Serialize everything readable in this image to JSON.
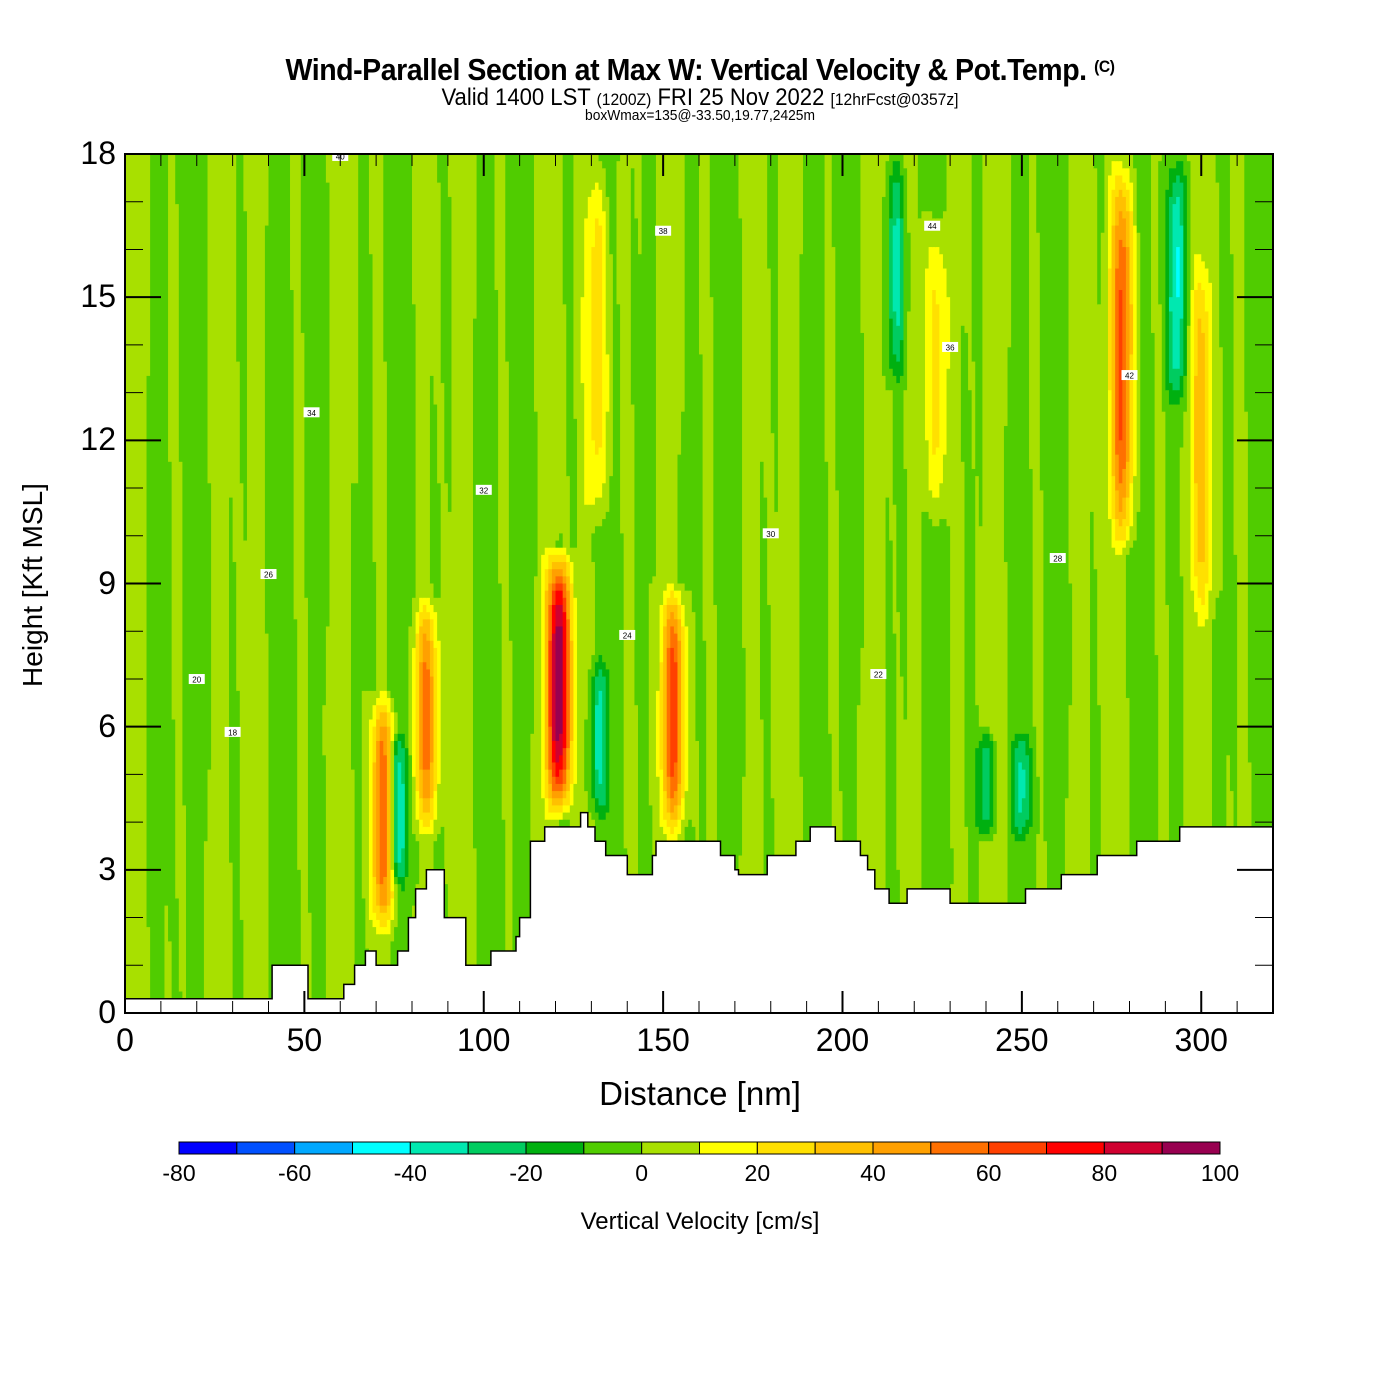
{
  "header": {
    "title": "Wind-Parallel Section at Max W: Vertical Velocity & Pot.Temp.",
    "copyright": "(C)",
    "valid_prefix": "Valid 1400 LST",
    "valid_utc": "(1200Z)",
    "valid_date": "FRI 25 Nov 2022",
    "forecast": "[12hrFcst@0357z]",
    "box_info": "boxWmax=135@-33.50,19.77,2425m"
  },
  "chart_data": {
    "type": "heatmap",
    "title": "Wind-Parallel Section at Max W: Vertical Velocity & Pot.Temp.",
    "xlabel": "Distance [nm]",
    "ylabel": "Height [Kft MSL]",
    "xlim": [
      0,
      320
    ],
    "ylim": [
      0,
      18
    ],
    "xticks": [
      0,
      50,
      100,
      150,
      200,
      250,
      300
    ],
    "xtick_labels": [
      "0",
      "50",
      "100",
      "150",
      "200",
      "250",
      "300"
    ],
    "yticks": [
      0,
      3,
      6,
      9,
      12,
      15,
      18
    ],
    "ytick_labels": [
      "0",
      "3",
      "6",
      "9",
      "12",
      "15",
      "18"
    ],
    "grid": false,
    "colorbar": {
      "label": "Vertical Velocity [cm/s]",
      "placement": "bottom",
      "bounds": [
        -80,
        -70,
        -60,
        -50,
        -40,
        -30,
        -20,
        -10,
        0,
        10,
        20,
        30,
        40,
        50,
        60,
        70,
        80,
        90,
        100
      ],
      "tick_values": [
        -80,
        -60,
        -40,
        -20,
        0,
        20,
        40,
        60,
        80,
        100
      ],
      "tick_labels": [
        "-80",
        "-60",
        "-40",
        "-20",
        "0",
        "20",
        "40",
        "60",
        "80",
        "100"
      ],
      "colors": [
        "#0000ff",
        "#0050ff",
        "#00a8ff",
        "#00ffff",
        "#00e8b0",
        "#00cc60",
        "#00b010",
        "#50cc00",
        "#a8e000",
        "#ffff00",
        "#ffe000",
        "#ffc000",
        "#ffa000",
        "#ff7000",
        "#ff4000",
        "#ff0000",
        "#d00030",
        "#980050"
      ]
    },
    "features": {
      "updraft_cores": [
        {
          "x_nm": 121,
          "base_kft": 4.0,
          "top_kft": 9.8,
          "peak_cms": 100
        },
        {
          "x_nm": 153,
          "base_kft": 3.6,
          "top_kft": 9.0,
          "peak_cms": 60
        },
        {
          "x_nm": 84,
          "base_kft": 3.6,
          "top_kft": 8.8,
          "peak_cms": 50
        },
        {
          "x_nm": 72,
          "base_kft": 1.5,
          "top_kft": 6.8,
          "peak_cms": 60
        },
        {
          "x_nm": 278,
          "base_kft": 9.5,
          "top_kft": 18,
          "peak_cms": 60
        },
        {
          "x_nm": 226,
          "base_kft": 10,
          "top_kft": 17,
          "peak_cms": 30
        },
        {
          "x_nm": 132,
          "base_kft": 10,
          "top_kft": 18,
          "peak_cms": 30
        },
        {
          "x_nm": 300,
          "base_kft": 8,
          "top_kft": 16,
          "peak_cms": 30
        }
      ],
      "downdraft_cores": [
        {
          "x_nm": 76,
          "base_kft": 2.5,
          "top_kft": 6.0,
          "peak_cms": -40
        },
        {
          "x_nm": 293,
          "base_kft": 12.5,
          "top_kft": 18,
          "peak_cms": -40
        },
        {
          "x_nm": 215,
          "base_kft": 13,
          "top_kft": 18,
          "peak_cms": -30
        },
        {
          "x_nm": 250,
          "base_kft": 3.5,
          "top_kft": 6.0,
          "peak_cms": -30
        },
        {
          "x_nm": 240,
          "base_kft": 3.5,
          "top_kft": 6.0,
          "peak_cms": -30
        },
        {
          "x_nm": 132,
          "base_kft": 4.0,
          "top_kft": 7.5,
          "peak_cms": -30
        }
      ],
      "terrain_kft": {
        "x": [
          0,
          40,
          41,
          50,
          51,
          60,
          61,
          63,
          64,
          66,
          67,
          69,
          70,
          75,
          76,
          78,
          79,
          80,
          81,
          83,
          84,
          88,
          89,
          94,
          95,
          101,
          102,
          108,
          109,
          110,
          112,
          113,
          116,
          117,
          126,
          127,
          128,
          129,
          130,
          131,
          133,
          134,
          139,
          140,
          141,
          147,
          148,
          165,
          166,
          168,
          169,
          170,
          171,
          178,
          179,
          186,
          187,
          190,
          191,
          197,
          198,
          204,
          205,
          206,
          207,
          208,
          209,
          210,
          211,
          212,
          213,
          217,
          218,
          224,
          225,
          229,
          230,
          250,
          251,
          260,
          261,
          270,
          271,
          281,
          282,
          293,
          294,
          320
        ],
        "h": [
          0.3,
          0.3,
          1.0,
          1.0,
          0.3,
          0.3,
          0.6,
          0.6,
          1.0,
          1.0,
          1.3,
          1.3,
          1.0,
          1.0,
          1.3,
          1.3,
          2.0,
          2.0,
          2.6,
          2.6,
          3.0,
          3.0,
          2.0,
          2.0,
          1.0,
          1.0,
          1.3,
          1.3,
          1.6,
          2.0,
          2.0,
          3.6,
          3.6,
          3.9,
          3.9,
          4.2,
          4.2,
          3.9,
          3.9,
          3.6,
          3.6,
          3.3,
          3.3,
          2.9,
          2.9,
          3.3,
          3.6,
          3.6,
          3.3,
          3.3,
          3.3,
          3.0,
          2.9,
          2.9,
          3.3,
          3.3,
          3.6,
          3.6,
          3.9,
          3.9,
          3.6,
          3.6,
          3.3,
          3.3,
          3.0,
          3.0,
          2.6,
          2.6,
          2.6,
          2.6,
          2.3,
          2.3,
          2.6,
          2.6,
          2.6,
          2.6,
          2.3,
          2.3,
          2.6,
          2.6,
          2.9,
          2.9,
          3.3,
          3.3,
          3.6,
          3.6,
          3.9,
          3.9
        ]
      }
    },
    "contour_labels": [
      "40",
      "38",
      "36",
      "34",
      "32",
      "30",
      "28",
      "26",
      "24",
      "22",
      "20",
      "18",
      "44",
      "42"
    ]
  }
}
